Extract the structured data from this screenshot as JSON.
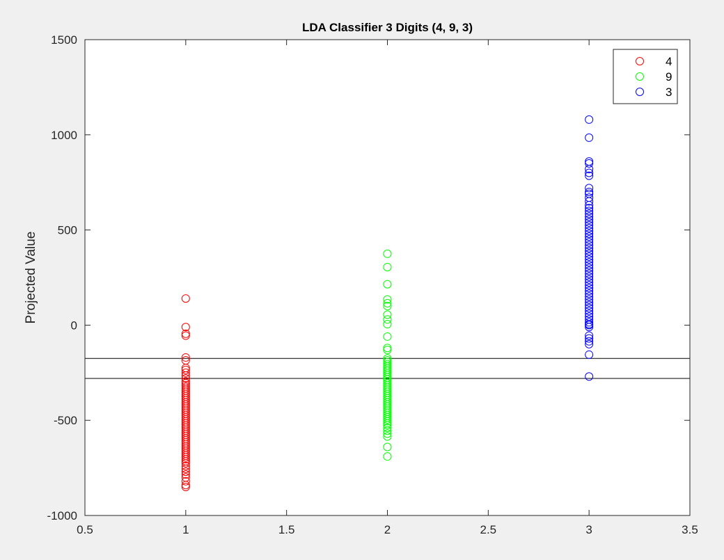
{
  "chart_data": {
    "type": "scatter",
    "title": "LDA Classifier 3 Digits (4, 9, 3)",
    "xlabel": "",
    "ylabel": "Projected Value",
    "xlim": [
      0.5,
      3.5
    ],
    "ylim": [
      -1000,
      1500
    ],
    "xticks": [
      0.5,
      1,
      1.5,
      2,
      2.5,
      3,
      3.5
    ],
    "xtick_labels": [
      "0.5",
      "1",
      "1.5",
      "2",
      "2.5",
      "3",
      "3.5"
    ],
    "yticks": [
      -1000,
      -500,
      0,
      500,
      1000,
      1500
    ],
    "ytick_labels": [
      "-1000",
      "-500",
      "0",
      "500",
      "1000",
      "1500"
    ],
    "grid": false,
    "legend_position": "top-right",
    "marker": "open-circle",
    "series": [
      {
        "name": "4",
        "color": "#ff0000",
        "x": 1,
        "values": [
          140,
          -10,
          -45,
          -55,
          -170,
          -185,
          -225,
          -235,
          -250,
          -265,
          -280,
          -295,
          -305,
          -315,
          -325,
          -335,
          -345,
          -355,
          -365,
          -375,
          -385,
          -395,
          -405,
          -415,
          -425,
          -435,
          -445,
          -455,
          -465,
          -475,
          -485,
          -495,
          -505,
          -515,
          -525,
          -535,
          -545,
          -555,
          -565,
          -575,
          -585,
          -595,
          -605,
          -615,
          -625,
          -635,
          -645,
          -655,
          -665,
          -675,
          -685,
          -695,
          -705,
          -715,
          -725,
          -740,
          -755,
          -770,
          -785,
          -800,
          -820,
          -840,
          -850
        ]
      },
      {
        "name": "9",
        "color": "#00ff00",
        "x": 2,
        "values": [
          375,
          305,
          215,
          135,
          115,
          100,
          55,
          30,
          5,
          -60,
          -120,
          -130,
          -175,
          -185,
          -195,
          -205,
          -215,
          -225,
          -235,
          -245,
          -255,
          -265,
          -275,
          -285,
          -295,
          -305,
          -315,
          -325,
          -335,
          -345,
          -355,
          -365,
          -375,
          -385,
          -395,
          -405,
          -415,
          -425,
          -435,
          -445,
          -455,
          -465,
          -475,
          -485,
          -495,
          -505,
          -515,
          -525,
          -540,
          -555,
          -570,
          -585,
          -640,
          -690
        ]
      },
      {
        "name": "3",
        "color": "#0000ff",
        "x": 3,
        "values": [
          1080,
          985,
          860,
          850,
          820,
          800,
          785,
          720,
          700,
          690,
          670,
          650,
          630,
          615,
          600,
          585,
          570,
          555,
          540,
          525,
          510,
          495,
          480,
          465,
          450,
          435,
          420,
          405,
          390,
          375,
          360,
          345,
          330,
          315,
          300,
          285,
          270,
          255,
          240,
          225,
          210,
          195,
          180,
          165,
          150,
          135,
          120,
          105,
          90,
          75,
          60,
          45,
          30,
          15,
          5,
          0,
          -10,
          -55,
          -70,
          -85,
          -100,
          -155,
          -270
        ]
      }
    ],
    "reference_lines": [
      {
        "y": -175,
        "color": "#000000"
      },
      {
        "y": -280,
        "color": "#000000"
      }
    ]
  }
}
